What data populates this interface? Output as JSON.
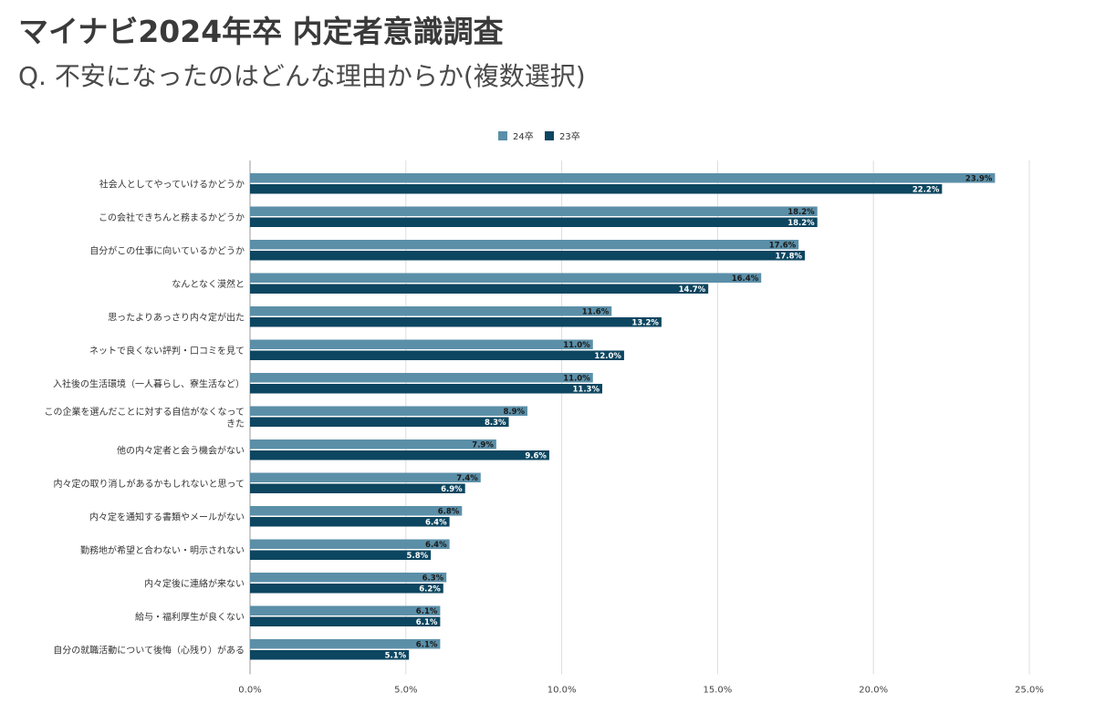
{
  "header": {
    "title": "マイナビ2024年卒 内定者意識調査",
    "subtitle": "Q. 不安になったのはどんな理由からか(複数選択)"
  },
  "chart_data": {
    "type": "bar",
    "orientation": "horizontal",
    "title": "",
    "xlabel": "",
    "ylabel": "",
    "xlim": [
      0,
      25
    ],
    "x_ticks": [
      "0.0%",
      "5.0%",
      "10.0%",
      "15.0%",
      "20.0%",
      "25.0%"
    ],
    "grid": true,
    "legend_position": "top-center",
    "value_format": "%",
    "categories": [
      "社会人としてやっていけるかどうか",
      "この会社できちんと務まるかどうか",
      "自分がこの仕事に向いているかどうか",
      "なんとなく漠然と",
      "思ったよりあっさり内々定が出た",
      "ネットで良くない評判・口コミを見て",
      "入社後の生活環境（一人暮らし、寮生活など）",
      "この企業を選んだことに対する自信がなくなってきた",
      "他の内々定者と会う機会がない",
      "内々定の取り消しがあるかもしれないと思って",
      "内々定を通知する書類やメールがない",
      "勤務地が希望と合わない・明示されない",
      "内々定後に連絡が来ない",
      "給与・福利厚生が良くない",
      "自分の就職活動について後悔（心残り）がある"
    ],
    "series": [
      {
        "name": "24卒",
        "color": "#5b8fa8",
        "values": [
          23.9,
          18.2,
          17.6,
          16.4,
          11.6,
          11.0,
          11.0,
          8.9,
          7.9,
          7.4,
          6.8,
          6.4,
          6.3,
          6.1,
          6.1
        ]
      },
      {
        "name": "23卒",
        "color": "#0d4660",
        "values": [
          22.2,
          18.2,
          17.8,
          14.7,
          13.2,
          12.0,
          11.3,
          8.3,
          9.6,
          6.9,
          6.4,
          5.8,
          6.2,
          6.1,
          5.1
        ]
      }
    ]
  }
}
